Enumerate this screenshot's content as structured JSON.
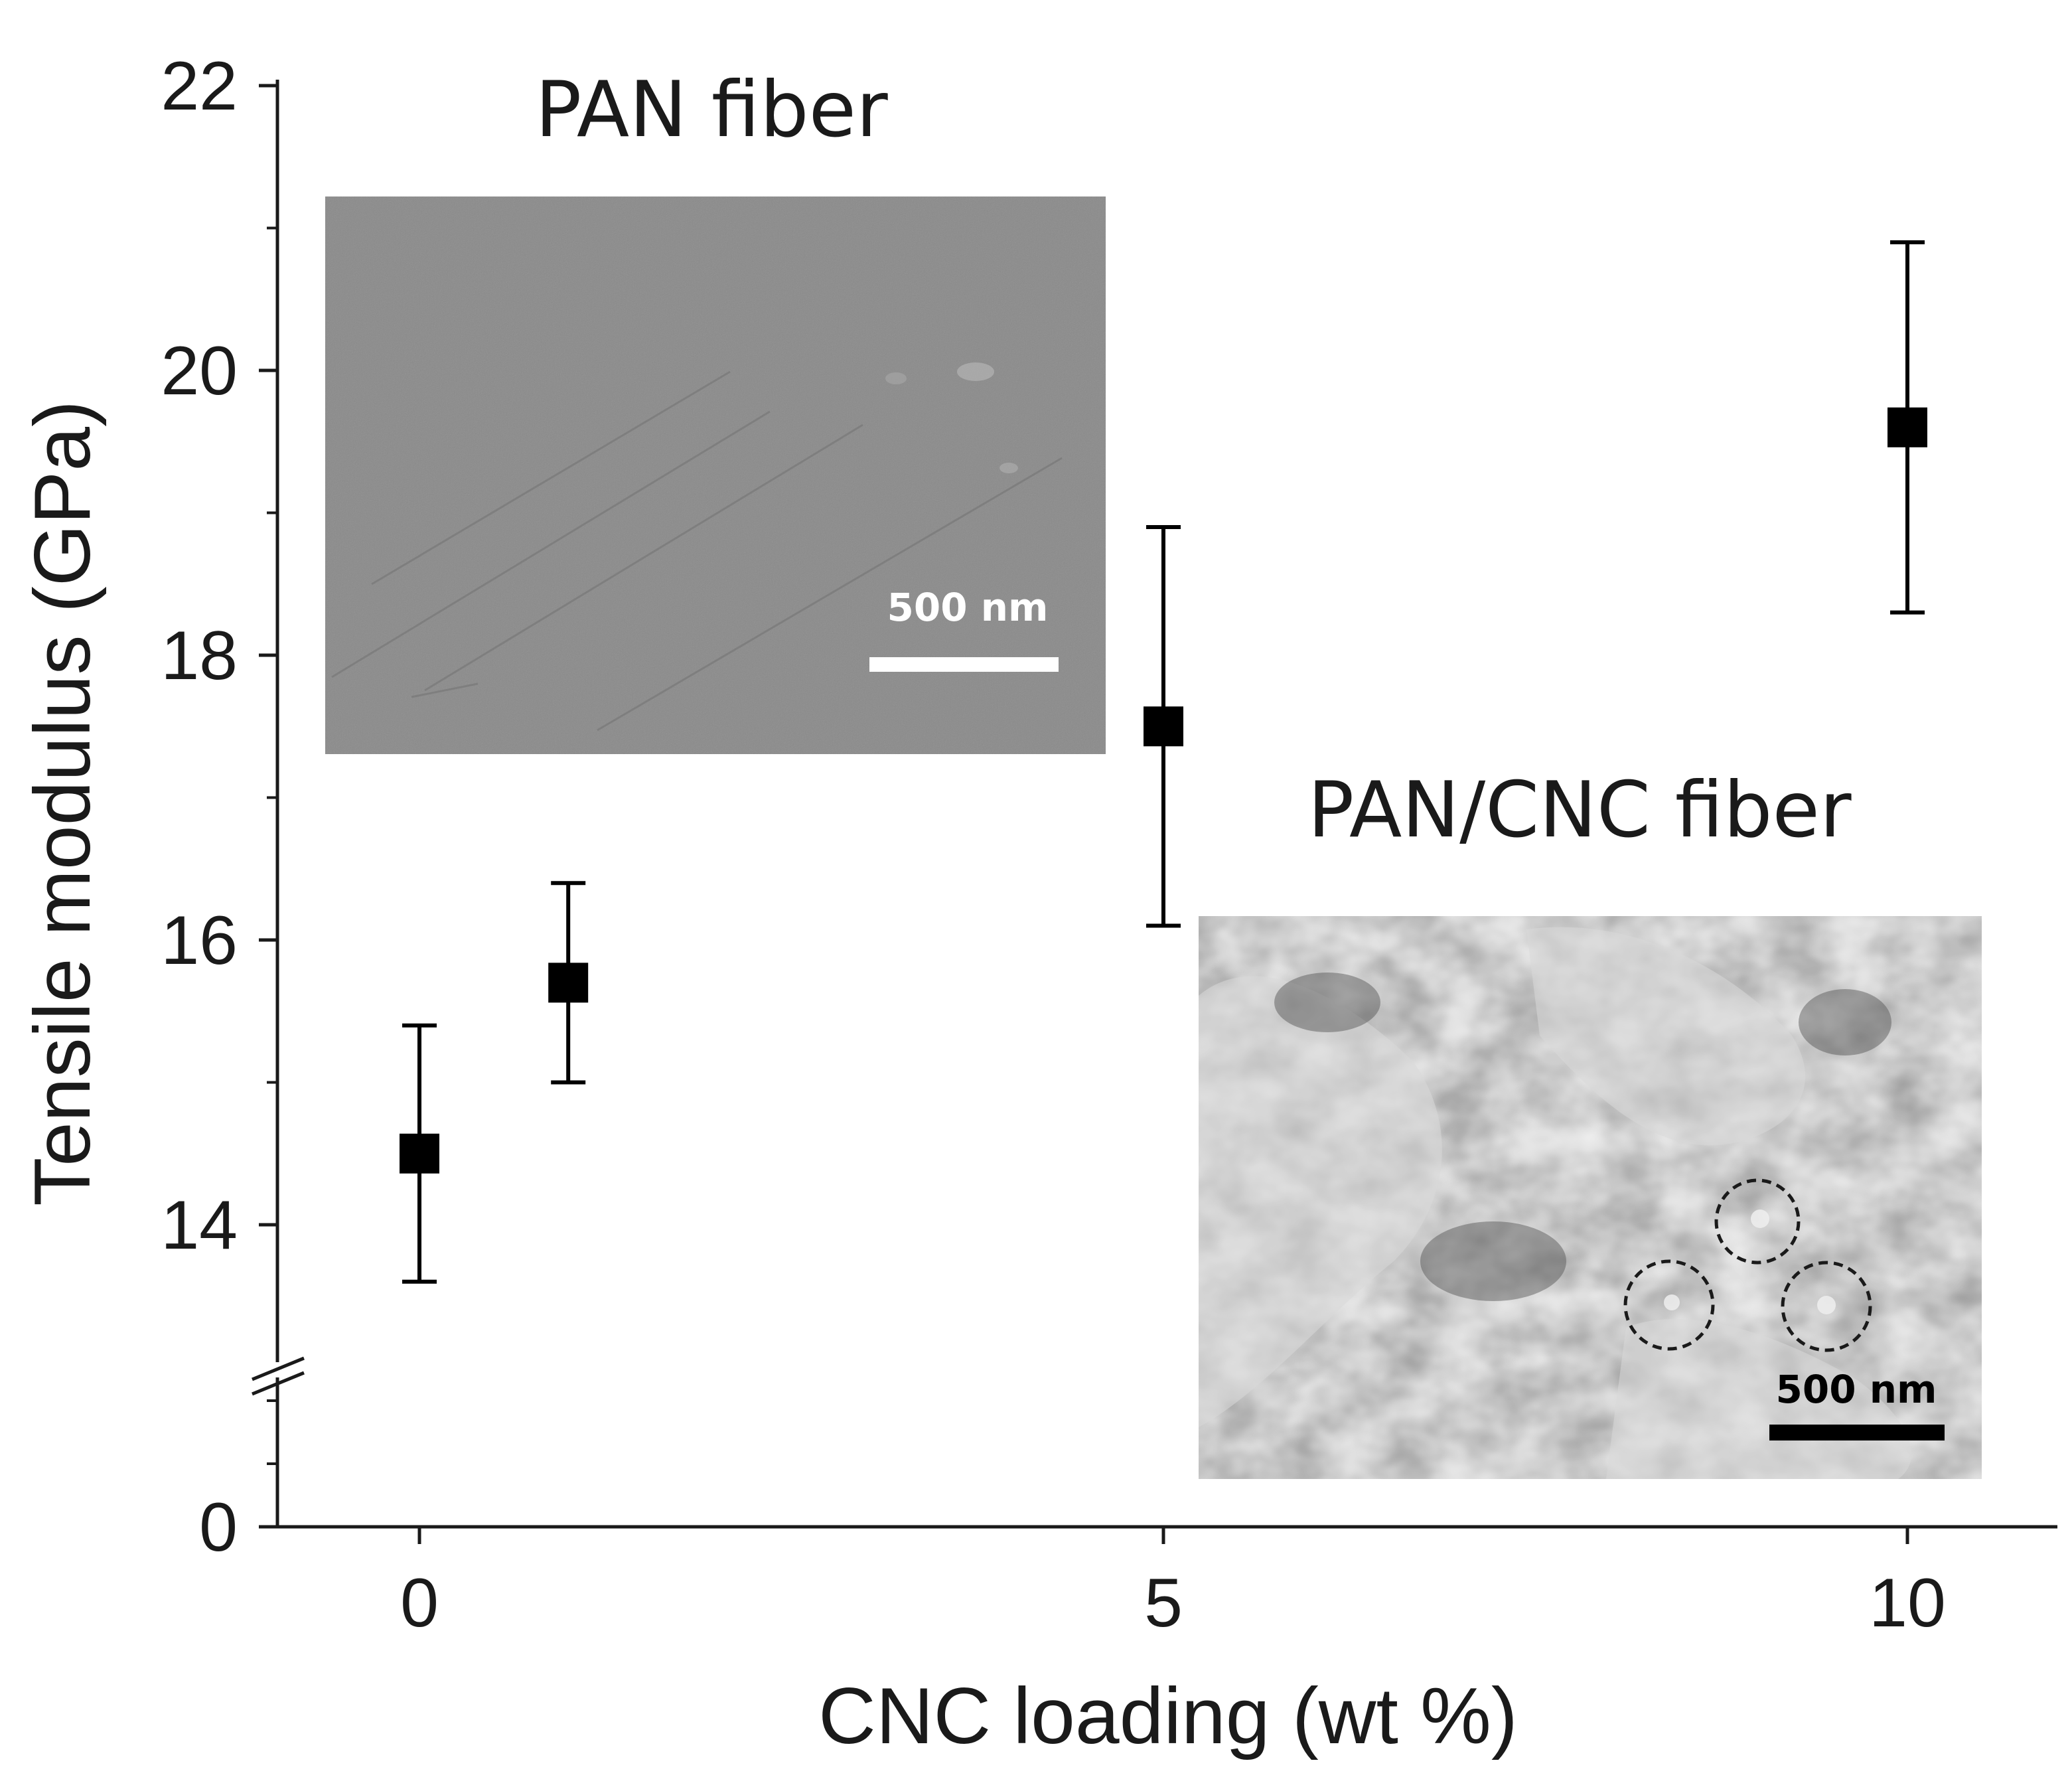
{
  "chart_data": {
    "type": "scatter",
    "xlabel": "CNC loading (wt %)",
    "ylabel": "Tensile modulus (GPa)",
    "xlim": [
      -1,
      11
    ],
    "ylim": [
      0,
      22
    ],
    "y_axis_break": [
      1.2,
      12.7
    ],
    "x_ticks": [
      0,
      5,
      10
    ],
    "y_ticks": [
      0,
      14,
      16,
      18,
      20,
      22
    ],
    "grid": false,
    "legend": "none",
    "marker": "square",
    "color": "#000000",
    "points": [
      {
        "x": 0,
        "y": 14.5,
        "err_low": 13.6,
        "err_high": 15.4
      },
      {
        "x": 1,
        "y": 15.7,
        "err_low": 15.0,
        "err_high": 16.4
      },
      {
        "x": 5,
        "y": 17.5,
        "err_low": 16.1,
        "err_high": 18.9
      },
      {
        "x": 10,
        "y": 19.6,
        "err_low": 18.3,
        "err_high": 20.9
      }
    ]
  },
  "insets": {
    "pan_fiber": {
      "title": "PAN fiber",
      "scale_label": "500 nm",
      "scale_bar_color": "#ffffff"
    },
    "pan_cnc_fiber": {
      "title": "PAN/CNC fiber",
      "scale_label": "500 nm",
      "scale_bar_color": "#000000"
    }
  }
}
